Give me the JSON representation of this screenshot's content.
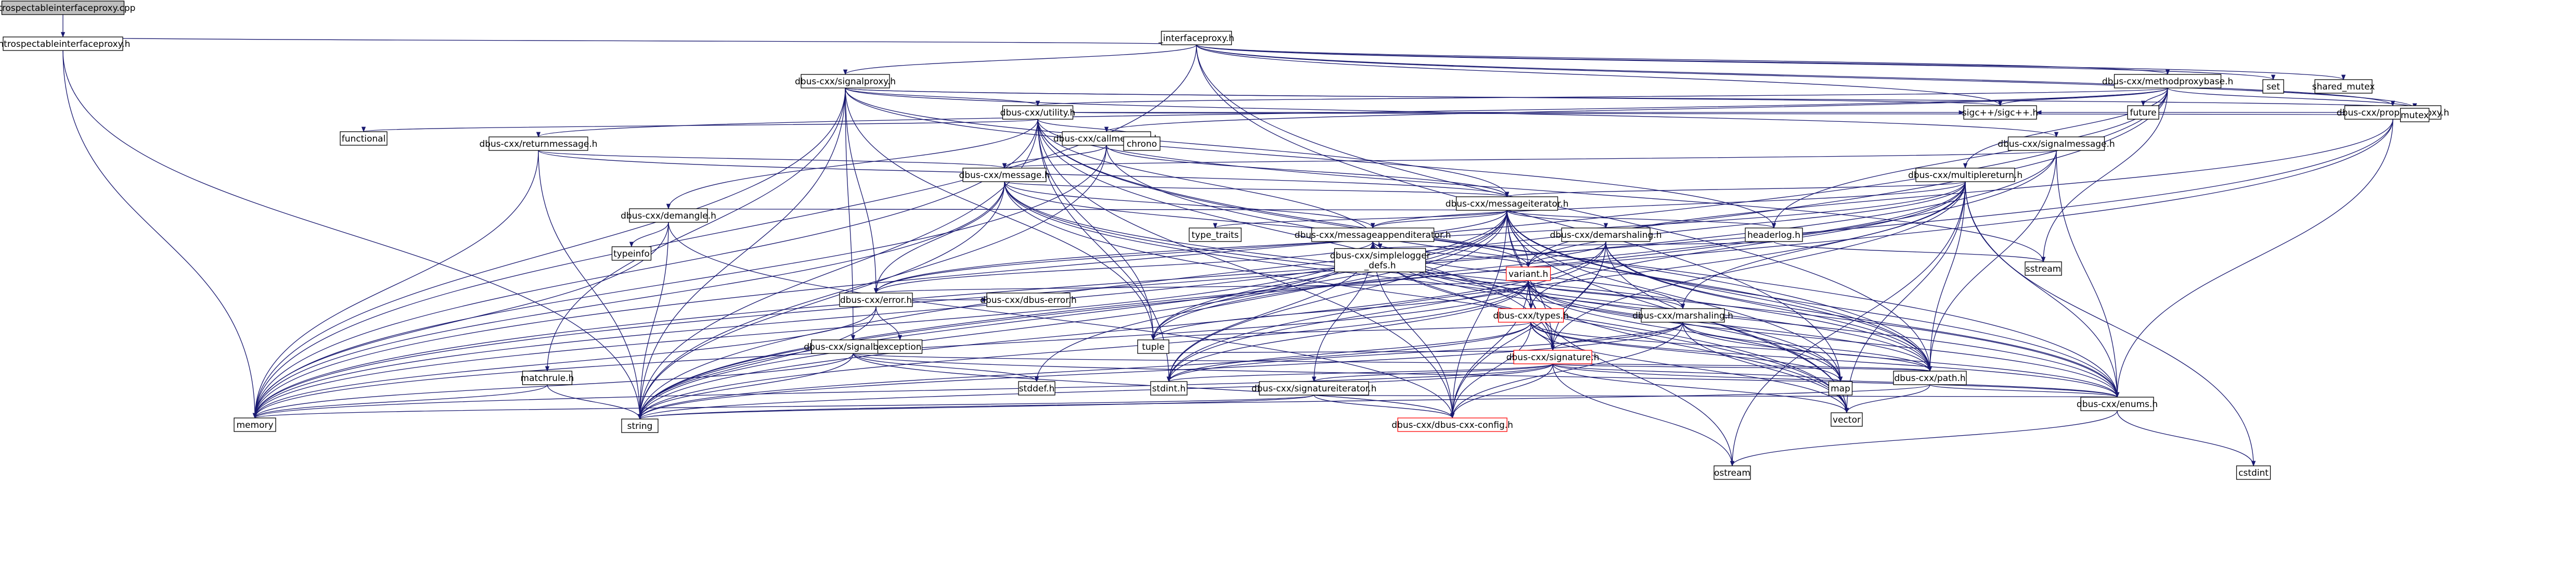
{
  "graph_title": "introspectableinterfaceproxy.cpp",
  "colors": {
    "edge": "#191970",
    "node_border": "#000000",
    "node_fill": "#ffffff",
    "root_fill": "#bfbfbf",
    "incomplete_border": "#ff0000",
    "background": "#ffffff"
  },
  "nodes": [
    {
      "id": "root",
      "label": "introspectableinterfaceproxy.cpp",
      "kind": "root"
    },
    {
      "id": "introh",
      "label": "introspectableinterfaceproxy.h",
      "kind": "file"
    },
    {
      "id": "iproxy",
      "label": "_interfaceproxy.h",
      "kind": "file"
    },
    {
      "id": "sigproxy",
      "label": "dbus-cxx/signalproxy.h",
      "kind": "file"
    },
    {
      "id": "methproxy",
      "label": "dbus-cxx/methodproxybase.h",
      "kind": "file"
    },
    {
      "id": "propproxy",
      "label": "dbus-cxx/propertyproxy.h",
      "kind": "file"
    },
    {
      "id": "utility",
      "label": "dbus-cxx/utility.h",
      "kind": "file"
    },
    {
      "id": "callmsg",
      "label": "dbus-cxx/callmessage.h",
      "kind": "file"
    },
    {
      "id": "retmsg",
      "label": "dbus-cxx/returnmessage.h",
      "kind": "file"
    },
    {
      "id": "sigmsg",
      "label": "dbus-cxx/signalmessage.h",
      "kind": "file"
    },
    {
      "id": "message",
      "label": "dbus-cxx/message.h",
      "kind": "file"
    },
    {
      "id": "multret",
      "label": "dbus-cxx/multiplereturn.h",
      "kind": "file"
    },
    {
      "id": "msgiter",
      "label": "dbus-cxx/messageiterator.h",
      "kind": "file"
    },
    {
      "id": "demangle",
      "label": "dbus-cxx/demangle.h",
      "kind": "file"
    },
    {
      "id": "msgappend",
      "label": "dbus-cxx/messageappenditerator.h",
      "kind": "file"
    },
    {
      "id": "demarsh",
      "label": "dbus-cxx/demarshaling.h",
      "kind": "file"
    },
    {
      "id": "headerlog",
      "label": "headerlog.h",
      "kind": "file"
    },
    {
      "id": "simplelog",
      "label": "dbus-cxx/simplelogger\n_defs.h",
      "kind": "file"
    },
    {
      "id": "varianth",
      "label": "variant.h",
      "kind": "incomplete"
    },
    {
      "id": "error",
      "label": "dbus-cxx/error.h",
      "kind": "file"
    },
    {
      "id": "types",
      "label": "dbus-cxx/types.h",
      "kind": "incomplete"
    },
    {
      "id": "marsh",
      "label": "dbus-cxx/marshaling.h",
      "kind": "file"
    },
    {
      "id": "signature",
      "label": "dbus-cxx/signature.h",
      "kind": "incomplete"
    },
    {
      "id": "sigbase",
      "label": "dbus-cxx/signalbase.h",
      "kind": "file"
    },
    {
      "id": "dbuserror",
      "label": "dbus-cxx/dbus-error.h",
      "kind": "file"
    },
    {
      "id": "sigiter",
      "label": "dbus-cxx/signatureiterator.h",
      "kind": "file"
    },
    {
      "id": "path",
      "label": "dbus-cxx/path.h",
      "kind": "file"
    },
    {
      "id": "enums",
      "label": "dbus-cxx/enums.h",
      "kind": "file"
    },
    {
      "id": "config",
      "label": "dbus-cxx/dbus-cxx-config.h",
      "kind": "incomplete"
    },
    {
      "id": "matchrule",
      "label": "matchrule.h",
      "kind": "file"
    },
    {
      "id": "sigcpp",
      "label": "sigc++/sigc++.h",
      "kind": "system"
    },
    {
      "id": "functional",
      "label": "functional",
      "kind": "system"
    },
    {
      "id": "chrono",
      "label": "chrono",
      "kind": "system"
    },
    {
      "id": "future",
      "label": "future",
      "kind": "system"
    },
    {
      "id": "set",
      "label": "set",
      "kind": "system"
    },
    {
      "id": "sharedmutex",
      "label": "shared_mutex",
      "kind": "system"
    },
    {
      "id": "mutex",
      "label": "mutex",
      "kind": "system"
    },
    {
      "id": "typeinfo",
      "label": "typeinfo",
      "kind": "system"
    },
    {
      "id": "typetraits",
      "label": "type_traits",
      "kind": "system"
    },
    {
      "id": "tuple",
      "label": "tuple",
      "kind": "system"
    },
    {
      "id": "exception",
      "label": "exception",
      "kind": "system"
    },
    {
      "id": "stddef",
      "label": "stddef.h",
      "kind": "system"
    },
    {
      "id": "stdint",
      "label": "stdint.h",
      "kind": "system"
    },
    {
      "id": "map",
      "label": "map",
      "kind": "system"
    },
    {
      "id": "vector",
      "label": "vector",
      "kind": "system"
    },
    {
      "id": "sstream",
      "label": "sstream",
      "kind": "system"
    },
    {
      "id": "ostream",
      "label": "ostream",
      "kind": "system"
    },
    {
      "id": "cstdint",
      "label": "cstdint",
      "kind": "system"
    },
    {
      "id": "memory",
      "label": "memory",
      "kind": "system"
    },
    {
      "id": "string",
      "label": "string",
      "kind": "system"
    }
  ],
  "edges": [
    [
      "root",
      "introh"
    ],
    [
      "introh",
      "iproxy"
    ],
    [
      "introh",
      "memory"
    ],
    [
      "introh",
      "string"
    ],
    [
      "iproxy",
      "sigproxy"
    ],
    [
      "iproxy",
      "methproxy"
    ],
    [
      "iproxy",
      "propproxy"
    ],
    [
      "iproxy",
      "sigcpp"
    ],
    [
      "iproxy",
      "set"
    ],
    [
      "iproxy",
      "sharedmutex"
    ],
    [
      "iproxy",
      "mutex"
    ],
    [
      "iproxy",
      "map"
    ],
    [
      "iproxy",
      "path"
    ],
    [
      "iproxy",
      "memory"
    ],
    [
      "sigproxy",
      "utility"
    ],
    [
      "sigproxy",
      "sigmsg"
    ],
    [
      "sigproxy",
      "msgiter"
    ],
    [
      "sigproxy",
      "sigbase"
    ],
    [
      "sigproxy",
      "matchrule"
    ],
    [
      "sigproxy",
      "headerlog"
    ],
    [
      "sigproxy",
      "error"
    ],
    [
      "sigproxy",
      "sigcpp"
    ],
    [
      "sigproxy",
      "memory"
    ],
    [
      "sigproxy",
      "string"
    ],
    [
      "sigproxy",
      "mutex"
    ],
    [
      "sigproxy",
      "tuple"
    ],
    [
      "methproxy",
      "utility"
    ],
    [
      "methproxy",
      "callmsg"
    ],
    [
      "methproxy",
      "retmsg"
    ],
    [
      "methproxy",
      "multret"
    ],
    [
      "methproxy",
      "headerlog"
    ],
    [
      "methproxy",
      "future"
    ],
    [
      "methproxy",
      "mutex"
    ],
    [
      "methproxy",
      "sigcpp"
    ],
    [
      "methproxy",
      "sstream"
    ],
    [
      "methproxy",
      "memory"
    ],
    [
      "methproxy",
      "string"
    ],
    [
      "propproxy",
      "enums"
    ],
    [
      "propproxy",
      "varianth"
    ],
    [
      "propproxy",
      "sigcpp"
    ],
    [
      "propproxy",
      "memory"
    ],
    [
      "propproxy",
      "string"
    ],
    [
      "utility",
      "enums"
    ],
    [
      "utility",
      "path"
    ],
    [
      "utility",
      "signature"
    ],
    [
      "utility",
      "demangle"
    ],
    [
      "utility",
      "functional"
    ],
    [
      "utility",
      "chrono"
    ],
    [
      "utility",
      "sigcpp"
    ],
    [
      "utility",
      "sstream"
    ],
    [
      "utility",
      "string"
    ],
    [
      "utility",
      "memory"
    ],
    [
      "utility",
      "stdint"
    ],
    [
      "utility",
      "tuple"
    ],
    [
      "utility",
      "simplelog"
    ],
    [
      "utility",
      "config"
    ],
    [
      "utility",
      "mutex"
    ],
    [
      "callmsg",
      "message"
    ],
    [
      "callmsg",
      "msgiter"
    ],
    [
      "callmsg",
      "path"
    ],
    [
      "callmsg",
      "memory"
    ],
    [
      "callmsg",
      "string"
    ],
    [
      "retmsg",
      "message"
    ],
    [
      "retmsg",
      "msgiter"
    ],
    [
      "retmsg",
      "memory"
    ],
    [
      "retmsg",
      "string"
    ],
    [
      "sigmsg",
      "message"
    ],
    [
      "sigmsg",
      "path"
    ],
    [
      "sigmsg",
      "enums"
    ],
    [
      "sigmsg",
      "memory"
    ],
    [
      "sigmsg",
      "string"
    ],
    [
      "message",
      "msgiter"
    ],
    [
      "message",
      "msgappend"
    ],
    [
      "message",
      "enums"
    ],
    [
      "message",
      "error"
    ],
    [
      "message",
      "varianth"
    ],
    [
      "message",
      "path"
    ],
    [
      "message",
      "map"
    ],
    [
      "message",
      "vector"
    ],
    [
      "message",
      "memory"
    ],
    [
      "message",
      "string"
    ],
    [
      "multret",
      "msgiter"
    ],
    [
      "multret",
      "msgappend"
    ],
    [
      "multret",
      "varianth"
    ],
    [
      "multret",
      "types"
    ],
    [
      "multret",
      "signature"
    ],
    [
      "multret",
      "marsh"
    ],
    [
      "multret",
      "path"
    ],
    [
      "multret",
      "error"
    ],
    [
      "multret",
      "tuple"
    ],
    [
      "multret",
      "vector"
    ],
    [
      "multret",
      "enums"
    ],
    [
      "multret",
      "ostream"
    ],
    [
      "multret",
      "cstdint"
    ],
    [
      "multret",
      "stdint"
    ],
    [
      "msgiter",
      "demangle"
    ],
    [
      "msgiter",
      "msgappend"
    ],
    [
      "msgiter",
      "demarsh"
    ],
    [
      "msgiter",
      "headerlog"
    ],
    [
      "msgiter",
      "varianth"
    ],
    [
      "msgiter",
      "error"
    ],
    [
      "msgiter",
      "types"
    ],
    [
      "msgiter",
      "signature"
    ],
    [
      "msgiter",
      "path"
    ],
    [
      "msgiter",
      "enums"
    ],
    [
      "msgiter",
      "config"
    ],
    [
      "msgiter",
      "typetraits"
    ],
    [
      "msgiter",
      "tuple"
    ],
    [
      "msgiter",
      "memory"
    ],
    [
      "msgiter",
      "string"
    ],
    [
      "msgiter",
      "map"
    ],
    [
      "msgiter",
      "vector"
    ],
    [
      "msgiter",
      "stdint"
    ],
    [
      "msgiter",
      "stddef"
    ],
    [
      "demangle",
      "typeinfo"
    ],
    [
      "demangle",
      "string"
    ],
    [
      "demangle",
      "memory"
    ],
    [
      "demangle",
      "config"
    ],
    [
      "msgappend",
      "varianth"
    ],
    [
      "msgappend",
      "error"
    ],
    [
      "msgappend",
      "types"
    ],
    [
      "msgappend",
      "signature"
    ],
    [
      "msgappend",
      "sigiter"
    ],
    [
      "msgappend",
      "marsh"
    ],
    [
      "msgappend",
      "path"
    ],
    [
      "msgappend",
      "enums"
    ],
    [
      "msgappend",
      "config"
    ],
    [
      "msgappend",
      "simplelog"
    ],
    [
      "msgappend",
      "tuple"
    ],
    [
      "msgappend",
      "memory"
    ],
    [
      "msgappend",
      "string"
    ],
    [
      "msgappend",
      "map"
    ],
    [
      "msgappend",
      "vector"
    ],
    [
      "msgappend",
      "stdint"
    ],
    [
      "demarsh",
      "varianth"
    ],
    [
      "demarsh",
      "enums"
    ],
    [
      "demarsh",
      "path"
    ],
    [
      "demarsh",
      "signature"
    ],
    [
      "demarsh",
      "config"
    ],
    [
      "demarsh",
      "stdint"
    ],
    [
      "demarsh",
      "string"
    ],
    [
      "demarsh",
      "vector"
    ],
    [
      "headerlog",
      "simplelog"
    ],
    [
      "headerlog",
      "sstream"
    ],
    [
      "varianth",
      "error"
    ],
    [
      "varianth",
      "types"
    ],
    [
      "varianth",
      "marsh"
    ],
    [
      "varianth",
      "signature"
    ],
    [
      "varianth",
      "path"
    ],
    [
      "varianth",
      "enums"
    ],
    [
      "varianth",
      "config"
    ],
    [
      "varianth",
      "map"
    ],
    [
      "varianth",
      "vector"
    ],
    [
      "varianth",
      "tuple"
    ],
    [
      "varianth",
      "stdint"
    ],
    [
      "varianth",
      "string"
    ],
    [
      "varianth",
      "memory"
    ],
    [
      "varianth",
      "ostream"
    ],
    [
      "error",
      "exception"
    ],
    [
      "error",
      "dbuserror"
    ],
    [
      "error",
      "memory"
    ],
    [
      "error",
      "string"
    ],
    [
      "types",
      "signature"
    ],
    [
      "types",
      "path"
    ],
    [
      "types",
      "enums"
    ],
    [
      "types",
      "config"
    ],
    [
      "types",
      "stdint"
    ],
    [
      "types",
      "string"
    ],
    [
      "types",
      "map"
    ],
    [
      "types",
      "vector"
    ],
    [
      "types",
      "tuple"
    ],
    [
      "marsh",
      "signature"
    ],
    [
      "marsh",
      "path"
    ],
    [
      "marsh",
      "enums"
    ],
    [
      "marsh",
      "config"
    ],
    [
      "marsh",
      "vector"
    ],
    [
      "marsh",
      "stdint"
    ],
    [
      "marsh",
      "string"
    ],
    [
      "signature",
      "sigiter"
    ],
    [
      "signature",
      "path"
    ],
    [
      "signature",
      "enums"
    ],
    [
      "signature",
      "config"
    ],
    [
      "signature",
      "stdint"
    ],
    [
      "signature",
      "memory"
    ],
    [
      "signature",
      "string"
    ],
    [
      "signature",
      "map"
    ],
    [
      "signature",
      "vector"
    ],
    [
      "signature",
      "ostream"
    ],
    [
      "signature",
      "tuple"
    ],
    [
      "sigbase",
      "path"
    ],
    [
      "sigbase",
      "stddef"
    ],
    [
      "sigbase",
      "string"
    ],
    [
      "sigbase",
      "memory"
    ],
    [
      "sigbase",
      "config"
    ],
    [
      "sigbase",
      "enums"
    ],
    [
      "sigiter",
      "enums"
    ],
    [
      "sigiter",
      "config"
    ],
    [
      "sigiter",
      "memory"
    ],
    [
      "sigiter",
      "string"
    ],
    [
      "path",
      "enums"
    ],
    [
      "path",
      "string"
    ],
    [
      "path",
      "vector"
    ],
    [
      "enums",
      "ostream"
    ],
    [
      "enums",
      "cstdint"
    ],
    [
      "matchrule",
      "memory"
    ],
    [
      "matchrule",
      "string"
    ]
  ]
}
